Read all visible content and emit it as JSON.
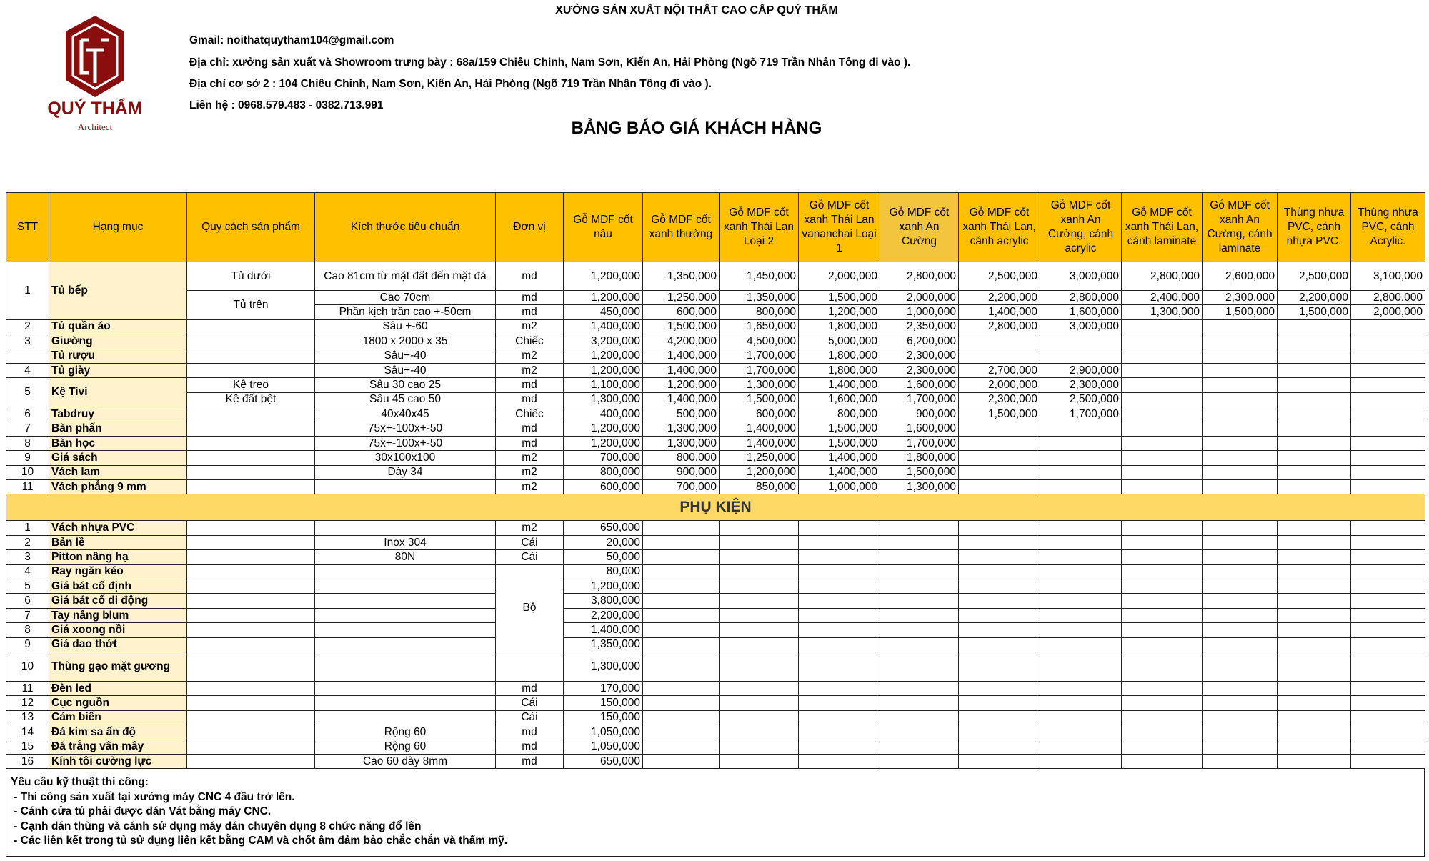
{
  "header": {
    "company": "XƯỞNG SẢN XUẤT NỘI THẤT CAO CẤP QUÝ THẨM",
    "logo_text": "QUÝ THẨM",
    "logo_sub": "Architect",
    "logo_mark": "QT",
    "gmail": "Gmail: noithatquytham104@gmail.com",
    "address1": "Địa chỉ: xưởng sản xuất và Showroom trưng bày : 68a/159 Chiêu Chinh, Nam Sơn, Kiến An, Hải Phòng (Ngõ 719 Trần Nhân Tông đi vào ).",
    "address2": "Địa chỉ cơ sở 2 : 104 Chiêu Chinh, Nam Sơn, Kiến An, Hải Phòng (Ngõ 719 Trần Nhân Tông đi vào ).",
    "contact": "Liên hệ : 0968.579.483 - 0382.713.991",
    "title": "BẢNG BÁO GIÁ KHÁCH HÀNG"
  },
  "colors": {
    "header": "#FFC000",
    "header_alt": "#F2C53D",
    "item_bg": "#FFF2CC",
    "band": "#FFD966",
    "logo": "#8B0E0E"
  },
  "columns": [
    "STT",
    "Hạng mục",
    "Quy cách sản phẩm",
    "Kích thước tiêu chuẩn",
    "Đơn vị",
    "Gỗ MDF cốt nâu",
    "Gỗ MDF cốt xanh thường",
    "Gỗ MDF cốt xanh Thái Lan Loại 2",
    "Gỗ MDF cốt xanh Thái Lan vananchai Loại 1",
    "Gỗ MDF cốt xanh An Cường",
    "Gỗ MDF cốt xanh Thái Lan, cánh acrylic",
    "Gỗ MDF cốt xanh An Cường, cánh acrylic",
    "Gỗ MDF cốt xanh Thái Lan, cánh laminate",
    "Gỗ MDF cốt xanh An Cường, cánh laminate",
    "Thùng nhựa PVC, cánh nhựa PVC.",
    "Thùng nhựa PVC, cánh Acrylic."
  ],
  "main_rows": [
    {
      "stt": "1",
      "item": "Tủ bếp",
      "spec": "Tủ dưới",
      "size": "Cao 81cm từ mặt đất đến mặt đá",
      "unit": "md",
      "prices": [
        "1,200,000",
        "1,350,000",
        "1,450,000",
        "2,000,000",
        "2,800,000",
        "2,500,000",
        "3,000,000",
        "2,800,000",
        "2,600,000",
        "2,500,000",
        "3,100,000"
      ]
    },
    {
      "spec": "Tủ trên",
      "size": "Cao 70cm",
      "unit": "md",
      "prices": [
        "1,200,000",
        "1,250,000",
        "1,350,000",
        "1,500,000",
        "2,000,000",
        "2,200,000",
        "2,800,000",
        "2,400,000",
        "2,300,000",
        "2,200,000",
        "2,800,000"
      ]
    },
    {
      "size": "Phần kịch trần cao +-50cm",
      "unit": "md",
      "prices": [
        "450,000",
        "600,000",
        "800,000",
        "1,200,000",
        "1,000,000",
        "1,400,000",
        "1,600,000",
        "1,300,000",
        "1,500,000",
        "1,500,000",
        "2,000,000"
      ]
    },
    {
      "stt": "2",
      "item": "Tủ quần áo",
      "spec": "",
      "size": "Sâu +-60",
      "unit": "m2",
      "prices": [
        "1,400,000",
        "1,500,000",
        "1,650,000",
        "1,800,000",
        "2,350,000",
        "2,800,000",
        "3,000,000",
        "",
        "",
        "",
        ""
      ]
    },
    {
      "stt": "3",
      "item": "Giường",
      "spec": "",
      "size": "1800 x 2000 x 35",
      "unit": "Chiếc",
      "prices": [
        "3,200,000",
        "4,200,000",
        "4,500,000",
        "5,000,000",
        "6,200,000",
        "",
        "",
        "",
        "",
        "",
        ""
      ]
    },
    {
      "stt": "",
      "item": "Tủ rượu",
      "spec": "",
      "size": "Sâu+-40",
      "unit": "m2",
      "prices": [
        "1,200,000",
        "1,400,000",
        "1,700,000",
        "1,800,000",
        "2,300,000",
        "",
        "",
        "",
        "",
        "",
        ""
      ]
    },
    {
      "stt": "4",
      "item": "Tủ giày",
      "spec": "",
      "size": "Sâu+-40",
      "unit": "m2",
      "prices": [
        "1,200,000",
        "1,400,000",
        "1,700,000",
        "1,800,000",
        "2,300,000",
        "2,700,000",
        "2,900,000",
        "",
        "",
        "",
        ""
      ]
    },
    {
      "stt": "5",
      "item": "Kệ Tivi",
      "spec": "Kệ treo",
      "size": "Sâu 30 cao 25",
      "unit": "md",
      "prices": [
        "1,100,000",
        "1,200,000",
        "1,300,000",
        "1,400,000",
        "1,600,000",
        "2,000,000",
        "2,300,000",
        "",
        "",
        "",
        ""
      ]
    },
    {
      "spec": "Kệ đất bệt",
      "size": "Sâu 45 cao 50",
      "unit": "md",
      "prices": [
        "1,300,000",
        "1,400,000",
        "1,500,000",
        "1,600,000",
        "1,700,000",
        "2,300,000",
        "2,500,000",
        "",
        "",
        "",
        ""
      ]
    },
    {
      "stt": "6",
      "item": "Tabdruy",
      "spec": "",
      "size": "40x40x45",
      "unit": "Chiếc",
      "prices": [
        "400,000",
        "500,000",
        "600,000",
        "800,000",
        "900,000",
        "1,500,000",
        "1,700,000",
        "",
        "",
        "",
        ""
      ]
    },
    {
      "stt": "7",
      "item": "Bàn phấn",
      "spec": "",
      "size": "75x+-100x+-50",
      "unit": "md",
      "prices": [
        "1,200,000",
        "1,300,000",
        "1,400,000",
        "1,500,000",
        "1,600,000",
        "",
        "",
        "",
        "",
        "",
        ""
      ]
    },
    {
      "stt": "8",
      "item": "Bàn học",
      "spec": "",
      "size": "75x+-100x+-50",
      "unit": "md",
      "prices": [
        "1,200,000",
        "1,300,000",
        "1,400,000",
        "1,500,000",
        "1,700,000",
        "",
        "",
        "",
        "",
        "",
        ""
      ]
    },
    {
      "stt": "9",
      "item": "Giá sách",
      "spec": "",
      "size": "30x100x100",
      "unit": "m2",
      "prices": [
        "700,000",
        "800,000",
        "1,250,000",
        "1,400,000",
        "1,800,000",
        "",
        "",
        "",
        "",
        "",
        ""
      ]
    },
    {
      "stt": "10",
      "item": "Vách lam",
      "spec": "",
      "size": "Dày 34",
      "unit": "m2",
      "prices": [
        "800,000",
        "900,000",
        "1,200,000",
        "1,400,000",
        "1,500,000",
        "",
        "",
        "",
        "",
        "",
        ""
      ]
    },
    {
      "stt": "11",
      "item": "Vách phẳng 9 mm",
      "spec": "",
      "size": "",
      "unit": "m2",
      "prices": [
        "600,000",
        "700,000",
        "850,000",
        "1,000,000",
        "1,300,000",
        "",
        "",
        "",
        "",
        "",
        ""
      ]
    }
  ],
  "accessories_label": "PHỤ KIỆN",
  "accessory_rows": [
    {
      "stt": "1",
      "item": "Vách nhựa PVC",
      "spec": "",
      "size": "",
      "unit": "m2",
      "price": "650,000"
    },
    {
      "stt": "2",
      "item": "Bản lề",
      "spec": "",
      "size": "Inox 304",
      "unit": "Cái",
      "price": "20,000"
    },
    {
      "stt": "3",
      "item": "Pitton nâng hạ",
      "spec": "",
      "size": "80N",
      "unit": "Cái",
      "price": "50,000"
    },
    {
      "stt": "4",
      "item": "Ray ngăn kéo",
      "spec": "",
      "size": "",
      "unit": "Bộ",
      "price": "80,000"
    },
    {
      "stt": "5",
      "item": "Giá bát cố định",
      "spec": "",
      "size": "",
      "price": "1,200,000"
    },
    {
      "stt": "6",
      "item": "Giá bát cố di động",
      "spec": "",
      "size": "",
      "price": "3,800,000"
    },
    {
      "stt": "7",
      "item": "Tay nâng blum",
      "spec": "",
      "size": "",
      "price": "2,200,000"
    },
    {
      "stt": "8",
      "item": "Giá xoong nồi",
      "spec": "",
      "size": "",
      "price": "1,400,000"
    },
    {
      "stt": "9",
      "item": "Giá dao thớt",
      "spec": "",
      "size": "",
      "price": "1,350,000"
    },
    {
      "stt": "10",
      "item": "Thùng gạo mặt gương",
      "spec": "",
      "size": "",
      "price": "1,300,000"
    },
    {
      "stt": "11",
      "item": "Đèn led",
      "spec": "",
      "size": "",
      "unit": "md",
      "price": "170,000"
    },
    {
      "stt": "12",
      "item": "Cục nguồn",
      "spec": "",
      "size": "",
      "unit": "Cái",
      "price": "150,000"
    },
    {
      "stt": "13",
      "item": "Cảm biến",
      "spec": "",
      "size": "",
      "unit": "Cái",
      "price": "150,000"
    },
    {
      "stt": "14",
      "item": "Đá kim sa ấn độ",
      "spec": "",
      "size": "Rộng 60",
      "unit": "md",
      "price": "1,050,000"
    },
    {
      "stt": "15",
      "item": "Đá trắng vân mây",
      "spec": "",
      "size": "Rộng 60",
      "unit": "md",
      "price": "1,050,000"
    },
    {
      "stt": "16",
      "item": "Kính tôi cường lực",
      "spec": "",
      "size": "Cao 60 dày 8mm",
      "unit": "md",
      "price": "650,000"
    }
  ],
  "notes": {
    "title": "Yêu cầu kỹ thuật thi công:",
    "items": [
      " - Thi công sản xuất tại xưởng máy CNC 4 đầu trở lên.",
      " - Cánh cửa tủ phải được dán Vát bằng máy CNC.",
      " - Cạnh dán thùng và cánh sử dụng máy dán chuyên dụng 8 chức năng đổ lên",
      " - Các liên kết trong tủ sử dụng liên kết bằng CAM và chốt âm đảm bảo chắc chắn và thẩm mỹ."
    ]
  }
}
